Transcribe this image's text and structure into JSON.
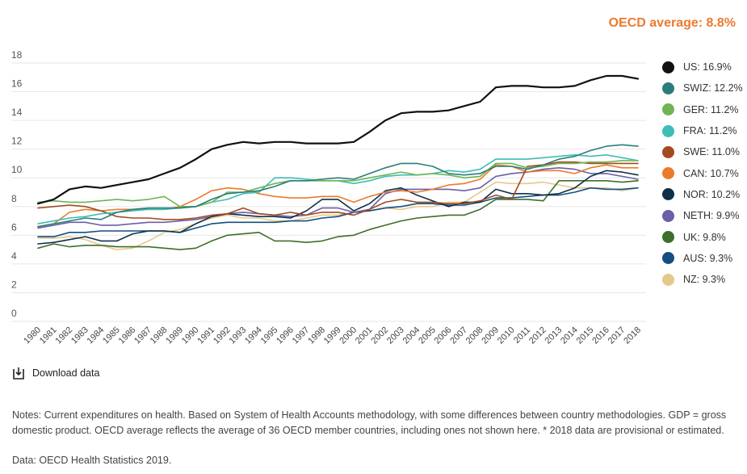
{
  "header": {
    "oecd_average": "OECD average: 8.8%"
  },
  "download": {
    "label": "Download data",
    "icon": "download-icon"
  },
  "notes": "Notes: Current expenditures on health. Based on System of Health Accounts methodology, with some differences between country methodologies. GDP = gross domestic product. OECD average reflects the average of 36 OECD member countries, including ones not shown here. * 2018 data are provisional or estimated.",
  "source": "Data: OECD Health Statistics 2019.",
  "chart_data": {
    "type": "line",
    "title": "",
    "xlabel": "",
    "ylabel": "",
    "ylim": [
      0,
      18
    ],
    "yticks": [
      0,
      2,
      4,
      6,
      8,
      10,
      12,
      14,
      16,
      18
    ],
    "grid": "horizontal",
    "legend_position": "right",
    "categories": [
      "1980",
      "1981",
      "1982",
      "1983",
      "1984",
      "1985",
      "1986",
      "1987",
      "1988",
      "1989",
      "1990",
      "1991",
      "1992",
      "1993",
      "1994",
      "1995",
      "1996",
      "1997",
      "1998",
      "1999",
      "2000",
      "2001",
      "2002",
      "2003",
      "2004",
      "2005",
      "2006",
      "2007",
      "2008",
      "2009",
      "2010",
      "2011",
      "2012",
      "2013",
      "2014",
      "2015",
      "2016",
      "2017",
      "2018"
    ],
    "series": [
      {
        "name": "US: 16.9%",
        "color": "#111111",
        "width": 2.2,
        "values": [
          8.2,
          8.5,
          9.2,
          9.4,
          9.3,
          9.5,
          9.7,
          9.9,
          10.3,
          10.7,
          11.3,
          12.0,
          12.3,
          12.5,
          12.4,
          12.5,
          12.5,
          12.4,
          12.4,
          12.4,
          12.5,
          13.2,
          14.0,
          14.5,
          14.6,
          14.6,
          14.7,
          15.0,
          15.3,
          16.3,
          16.4,
          16.4,
          16.3,
          16.3,
          16.4,
          16.8,
          17.1,
          17.1,
          16.9
        ]
      },
      {
        "name": "SWIZ: 12.2%",
        "color": "#2a7d7a",
        "values": [
          6.6,
          6.8,
          7.0,
          7.2,
          7.1,
          7.6,
          7.8,
          7.9,
          7.9,
          7.9,
          8.0,
          8.5,
          8.9,
          9.0,
          9.1,
          9.4,
          9.8,
          9.8,
          9.9,
          10.0,
          9.9,
          10.3,
          10.7,
          11.0,
          11.0,
          10.8,
          10.3,
          10.2,
          10.3,
          10.8,
          10.8,
          10.6,
          10.9,
          11.3,
          11.5,
          11.9,
          12.2,
          12.3,
          12.2
        ]
      },
      {
        "name": "GER: 11.2%",
        "color": "#6fb554",
        "values": [
          8.3,
          8.4,
          8.3,
          8.3,
          8.4,
          8.5,
          8.4,
          8.5,
          8.7,
          8.0,
          8.0,
          8.3,
          9.0,
          9.0,
          9.3,
          9.6,
          9.8,
          9.8,
          9.8,
          9.8,
          9.8,
          10.0,
          10.2,
          10.4,
          10.2,
          10.3,
          10.2,
          10.0,
          10.1,
          11.0,
          11.0,
          10.7,
          10.8,
          11.0,
          11.0,
          11.1,
          11.1,
          11.2,
          11.2
        ]
      },
      {
        "name": "FRA: 11.2%",
        "color": "#3dbdb5",
        "values": [
          6.8,
          7.0,
          7.2,
          7.3,
          7.5,
          7.6,
          7.7,
          7.8,
          7.8,
          7.9,
          8.0,
          8.3,
          8.5,
          8.9,
          9.0,
          10.0,
          10.0,
          9.9,
          9.8,
          9.8,
          9.6,
          9.8,
          10.1,
          10.2,
          10.2,
          10.3,
          10.5,
          10.4,
          10.6,
          11.3,
          11.3,
          11.3,
          11.4,
          11.5,
          11.6,
          11.5,
          11.6,
          11.4,
          11.2
        ]
      },
      {
        "name": "SWE: 11.0%",
        "color": "#a34a23",
        "values": [
          7.9,
          8.0,
          8.1,
          8.0,
          7.7,
          7.3,
          7.2,
          7.2,
          7.1,
          7.1,
          7.2,
          7.4,
          7.5,
          7.9,
          7.5,
          7.4,
          7.6,
          7.4,
          7.6,
          7.6,
          7.4,
          7.8,
          8.3,
          8.5,
          8.3,
          8.3,
          8.2,
          8.2,
          8.4,
          8.8,
          8.5,
          10.8,
          10.9,
          11.1,
          11.1,
          11.0,
          11.0,
          11.0,
          11.0
        ]
      },
      {
        "name": "CAN: 10.7%",
        "color": "#ec7a2c",
        "values": [
          6.6,
          6.8,
          7.6,
          7.8,
          7.7,
          7.8,
          7.8,
          7.8,
          7.8,
          8.0,
          8.5,
          9.1,
          9.3,
          9.2,
          8.9,
          8.7,
          8.6,
          8.6,
          8.7,
          8.7,
          8.3,
          8.7,
          9.0,
          9.1,
          9.0,
          9.2,
          9.5,
          9.6,
          9.9,
          10.9,
          10.8,
          10.4,
          10.5,
          10.5,
          10.3,
          10.7,
          10.9,
          10.7,
          10.7
        ]
      },
      {
        "name": "NOR: 10.2%",
        "color": "#10304a",
        "values": [
          5.4,
          5.5,
          5.7,
          5.9,
          5.6,
          5.6,
          6.1,
          6.3,
          6.3,
          6.2,
          6.8,
          7.3,
          7.5,
          7.4,
          7.3,
          7.3,
          7.2,
          7.7,
          8.5,
          8.5,
          7.7,
          8.2,
          9.1,
          9.3,
          8.8,
          8.4,
          8.0,
          8.3,
          8.3,
          9.2,
          8.9,
          8.9,
          8.8,
          8.9,
          9.3,
          10.1,
          10.5,
          10.4,
          10.2
        ]
      },
      {
        "name": "NETH: 9.9%",
        "color": "#6b5fa8",
        "values": [
          6.5,
          6.7,
          6.9,
          6.9,
          6.7,
          6.7,
          6.8,
          6.9,
          6.9,
          7.0,
          7.1,
          7.3,
          7.5,
          7.6,
          7.5,
          7.4,
          7.3,
          7.4,
          7.9,
          7.9,
          7.6,
          7.8,
          8.9,
          9.2,
          9.2,
          9.2,
          9.2,
          9.1,
          9.3,
          10.1,
          10.3,
          10.4,
          10.6,
          10.7,
          10.6,
          10.3,
          10.3,
          10.1,
          9.9
        ]
      },
      {
        "name": "UK: 9.8%",
        "color": "#3e6e2c",
        "values": [
          5.1,
          5.4,
          5.2,
          5.3,
          5.3,
          5.2,
          5.2,
          5.2,
          5.1,
          5.0,
          5.1,
          5.6,
          6.0,
          6.1,
          6.2,
          5.6,
          5.6,
          5.5,
          5.6,
          5.9,
          6.0,
          6.4,
          6.7,
          7.0,
          7.2,
          7.3,
          7.4,
          7.4,
          7.8,
          8.5,
          8.5,
          8.5,
          8.4,
          9.8,
          9.8,
          9.8,
          9.8,
          9.7,
          9.8
        ]
      },
      {
        "name": "AUS: 9.3%",
        "color": "#134f80",
        "values": [
          5.9,
          5.9,
          6.2,
          6.2,
          6.3,
          6.3,
          6.3,
          6.3,
          6.3,
          6.2,
          6.5,
          6.8,
          6.9,
          6.9,
          6.9,
          6.9,
          7.0,
          7.0,
          7.2,
          7.3,
          7.6,
          7.7,
          7.9,
          8.0,
          8.2,
          8.2,
          8.1,
          8.1,
          8.3,
          8.6,
          8.6,
          8.7,
          8.8,
          8.8,
          9.0,
          9.3,
          9.2,
          9.2,
          9.3
        ]
      },
      {
        "name": "NZ: 9.3%",
        "color": "#e6c98a",
        "values": [
          5.8,
          5.8,
          5.9,
          5.7,
          5.3,
          5.0,
          5.1,
          5.6,
          6.2,
          6.4,
          6.8,
          7.2,
          7.4,
          7.2,
          7.2,
          7.0,
          7.0,
          7.2,
          7.4,
          7.4,
          7.6,
          7.7,
          7.9,
          7.8,
          8.0,
          8.0,
          8.3,
          8.3,
          9.0,
          9.7,
          9.6,
          9.6,
          9.7,
          9.5,
          9.3,
          9.3,
          9.3,
          9.1,
          9.3
        ]
      }
    ]
  }
}
